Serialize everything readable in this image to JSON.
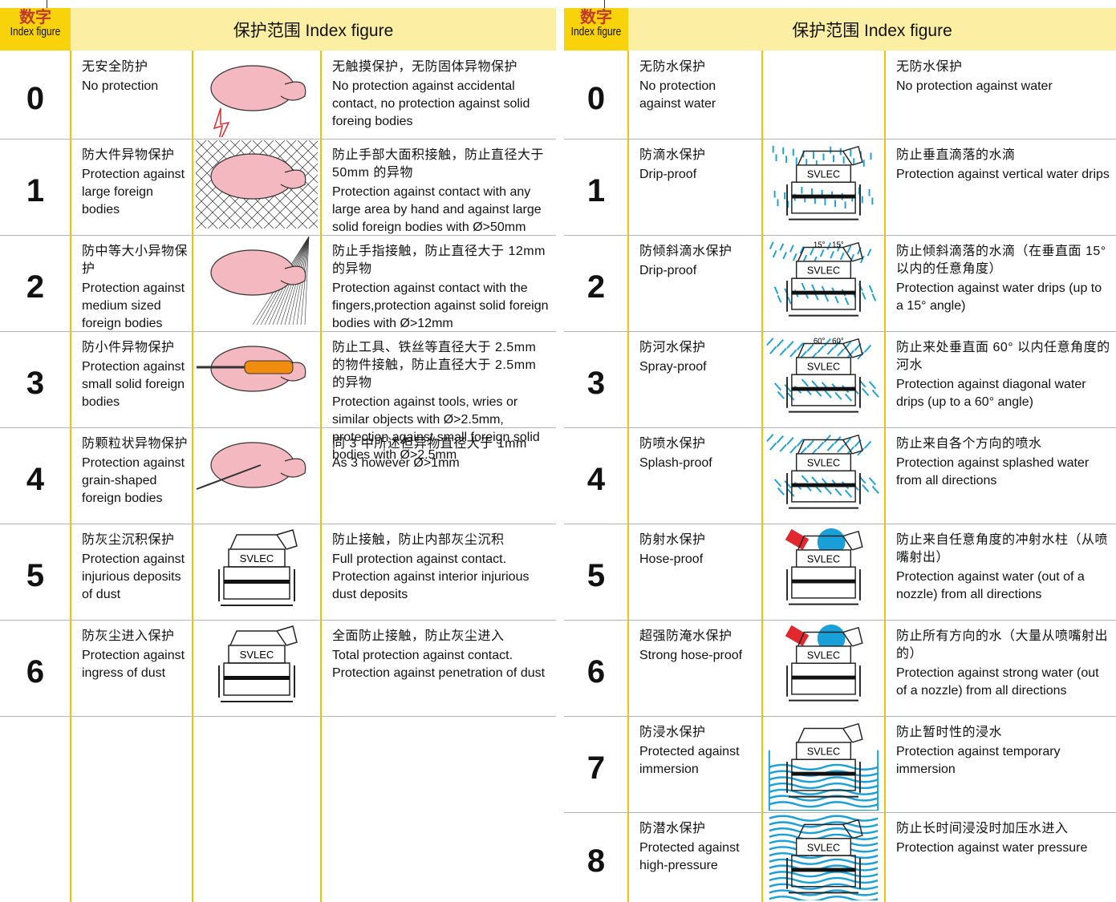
{
  "left": {
    "header": {
      "number_zh": "数字",
      "number_en": "Index figure",
      "title": "保护范围  Index figure"
    },
    "rows": [
      {
        "digit": "0",
        "name_zh": "无安全防护",
        "name_en": "No protection",
        "desc_zh": "无触摸保护，无防固体异物保护",
        "desc_en": "No protection against accidental contact, no protection against solid foreing bodies"
      },
      {
        "digit": "1",
        "name_zh": "防大件异物保护",
        "name_en": "Protection against large foreign bodies",
        "desc_zh": "防止手部大面积接触，防止直径大于 50mm 的异物",
        "desc_en": "Protection against contact with any large area by hand and against large solid foreign bodies with Ø>50mm"
      },
      {
        "digit": "2",
        "name_zh": "防中等大小异物保护",
        "name_en": "Protection against medium sized foreign bodies",
        "desc_zh": "防止手指接触，防止直径大于 12mm 的异物",
        "desc_en": "Protection against contact with the fingers,protection against solid foreign bodies with Ø>12mm"
      },
      {
        "digit": "3",
        "name_zh": "防小件异物保护",
        "name_en": "Protection against small solid foreign bodies",
        "desc_zh": "防止工具、铁丝等直径大于 2.5mm 的物件接触，防止直径大于 2.5mm 的异物",
        "desc_en": "Protection against tools, wries or similar objects with Ø>2.5mm, protection against small foreign solid bodies with Ø>2.5mm"
      },
      {
        "digit": "4",
        "name_zh": "防颗粒状异物保护",
        "name_en": "Protection against grain-shaped foreign bodies",
        "desc_zh": "同 3 中所述但异物直径大于 1mm",
        "desc_en": "As 3 however Ø>1mm"
      },
      {
        "digit": "5",
        "name_zh": "防灰尘沉积保护",
        "name_en": "Protection against injurious deposits of dust",
        "desc_zh": "防止接触，防止内部灰尘沉积",
        "desc_en": "Full protection against contact. Protection against interior injurious dust deposits",
        "device_label": "SVLEC"
      },
      {
        "digit": "6",
        "name_zh": "防灰尘进入保护",
        "name_en": "Protection against ingress of dust",
        "desc_zh": "全面防止接触，防止灰尘进入",
        "desc_en": "Total protection against contact. Protection against penetration of dust",
        "device_label": "SVLEC"
      }
    ]
  },
  "right": {
    "header": {
      "number_zh": "数字",
      "number_en": "Index figure",
      "title": "保护范围  Index figure"
    },
    "rows": [
      {
        "digit": "0",
        "name_zh": "无防水保护",
        "name_en": "No protection against water",
        "desc_zh": "无防水保护",
        "desc_en": "No protection against water"
      },
      {
        "digit": "1",
        "name_zh": "防滴水保护",
        "name_en": "Drip-proof",
        "desc_zh": "防止垂直滴落的水滴",
        "desc_en": "Protection against vertical water drips",
        "device_label": "SVLEC"
      },
      {
        "digit": "2",
        "name_zh": "防倾斜滴水保护",
        "name_en": "Drip-proof",
        "desc_zh": "防止倾斜滴落的水滴（在垂直面 15° 以内的任意角度）",
        "desc_en": "Protection against water drips (up to a 15°  angle)",
        "device_label": "SVLEC",
        "angle_labels": [
          "15°",
          "15°"
        ]
      },
      {
        "digit": "3",
        "name_zh": "防河水保护",
        "name_en": "Spray-proof",
        "desc_zh": "防止来处垂直面 60° 以内任意角度的河水",
        "desc_en": "Protection against diagonal water drips (up to a 60°  angle)",
        "device_label": "SVLEC",
        "angle_labels": [
          "60°",
          "60°"
        ]
      },
      {
        "digit": "4",
        "name_zh": "防喷水保护",
        "name_en": "Splash-proof",
        "desc_zh": "防止来自各个方向的喷水",
        "desc_en": "Protection against splashed water from all directions",
        "device_label": "SVLEC"
      },
      {
        "digit": "5",
        "name_zh": "防射水保护",
        "name_en": "Hose-proof",
        "desc_zh": "防止来自任意角度的冲射水柱（从喷嘴射出）",
        "desc_en": "Protection against water (out of a nozzle) from all directions",
        "device_label": "SVLEC"
      },
      {
        "digit": "6",
        "name_zh": "超强防淹水保护",
        "name_en": "Strong hose-proof",
        "desc_zh": "防止所有方向的水（大量从喷嘴射出的）",
        "desc_en": "Protection against strong water (out of a nozzle) from all directions",
        "device_label": "SVLEC"
      },
      {
        "digit": "7",
        "name_zh": "防浸水保护",
        "name_en": "Protected against immersion",
        "desc_zh": "防止暂时性的浸水",
        "desc_en": "Protection against temporary immersion",
        "device_label": "SVLEC"
      },
      {
        "digit": "8",
        "name_zh": "防潜水保护",
        "name_en": "Protected against high-pressure",
        "desc_zh": "防止长时间浸没时加压水进入",
        "desc_en": "Protection against water pressure",
        "device_label": "SVLEC"
      }
    ]
  }
}
